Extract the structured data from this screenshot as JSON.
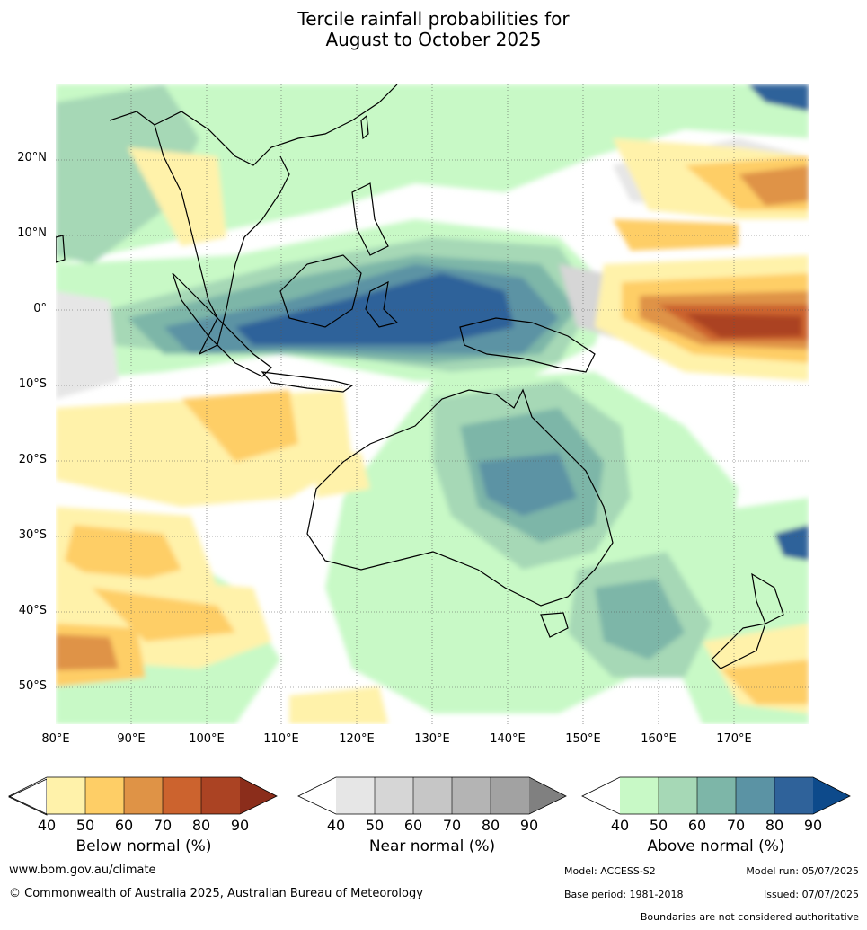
{
  "title": {
    "line1": "Tercile rainfall probabilities for",
    "line2": "August to October 2025"
  },
  "map": {
    "lon_range": [
      80,
      180
    ],
    "lat_range": [
      -55,
      30
    ],
    "lat_ticks": [
      "20°N",
      "10°N",
      "0°",
      "10°S",
      "20°S",
      "30°S",
      "40°S",
      "50°S"
    ],
    "lon_ticks": [
      "80°E",
      "90°E",
      "100°E",
      "110°E",
      "120°E",
      "130°E",
      "140°E",
      "150°E",
      "160°E",
      "170°E"
    ]
  },
  "colorbars": {
    "ticks": [
      "40",
      "50",
      "60",
      "70",
      "80",
      "90"
    ],
    "below": {
      "label": "Below normal (%)",
      "colors": [
        "#fff2aa",
        "#fece66",
        "#df9346",
        "#cc632e",
        "#ab4323",
        "#8b2d1b"
      ]
    },
    "near": {
      "label": "Near normal (%)",
      "colors": [
        "#e6e6e6",
        "#d6d6d6",
        "#c6c6c6",
        "#b4b4b4",
        "#a2a2a2",
        "#808080"
      ]
    },
    "above": {
      "label": "Above normal (%)",
      "colors": [
        "#c8f9c6",
        "#a6d8b6",
        "#7db6a8",
        "#5b93a4",
        "#2f629a",
        "#0d4a8b"
      ]
    }
  },
  "footer": {
    "website": "www.bom.gov.au/climate",
    "copyright": "© Commonwealth of Australia 2025, Australian Bureau of Meteorology",
    "model": "Model: ACCESS-S2",
    "model_run": "Model run: 05/07/2025",
    "base_period": "Base period: 1981-2018",
    "issued": "Issued: 07/07/2025",
    "disclaimer": "Boundaries are not considered authoritative"
  }
}
